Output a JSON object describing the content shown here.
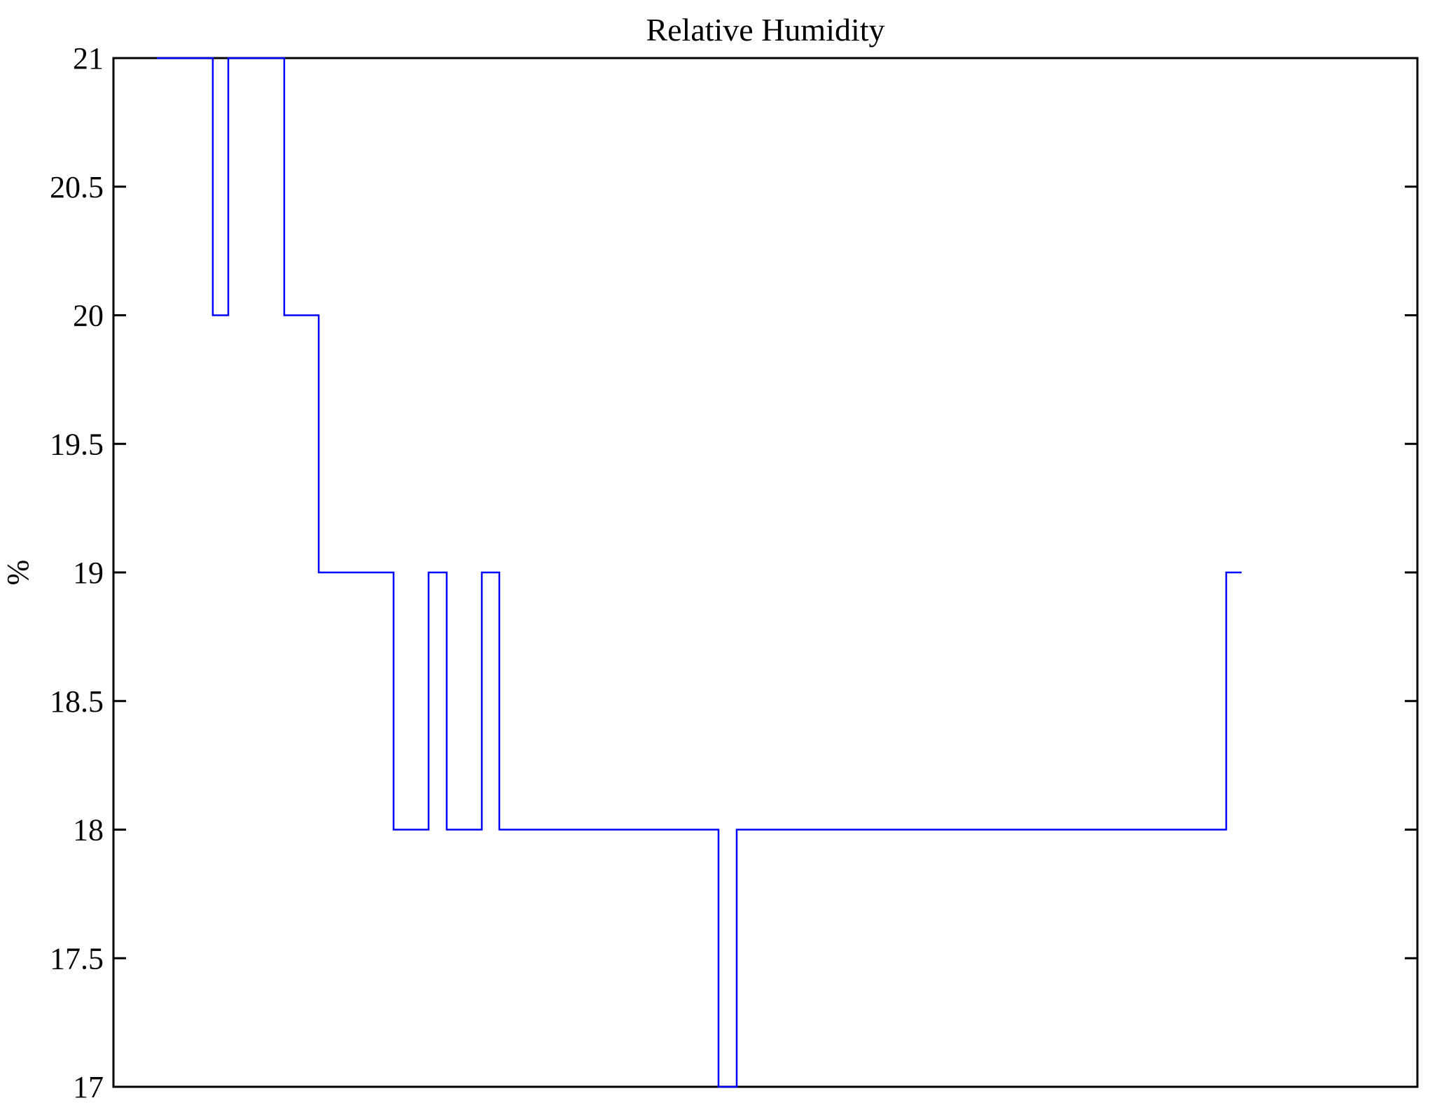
{
  "chart_data": {
    "type": "line",
    "subtype": "step",
    "title": "Relative Humidity",
    "xlabel": "",
    "ylabel": "%",
    "ylim": [
      17,
      21
    ],
    "yticks": [
      17,
      17.5,
      18,
      18.5,
      19,
      19.5,
      20,
      20.5,
      21
    ],
    "ytick_labels": [
      "17",
      "17.5",
      "18",
      "18.5",
      "19",
      "19.5",
      "20",
      "20.5",
      "21"
    ],
    "xlim_norm": [
      0,
      1
    ],
    "xticks": [],
    "xtick_labels": [],
    "grid": false,
    "legend": "none",
    "line_color": "#0000ff",
    "axis_color": "#000000",
    "background_color": "#ffffff",
    "steps": [
      {
        "x0": 0.0333,
        "x1": 0.0762,
        "y": 21
      },
      {
        "x0": 0.0762,
        "x1": 0.0881,
        "y": 20
      },
      {
        "x0": 0.0881,
        "x1": 0.131,
        "y": 21
      },
      {
        "x0": 0.131,
        "x1": 0.1574,
        "y": 20
      },
      {
        "x0": 0.1574,
        "x1": 0.2148,
        "y": 19
      },
      {
        "x0": 0.2148,
        "x1": 0.2417,
        "y": 18
      },
      {
        "x0": 0.2417,
        "x1": 0.2556,
        "y": 19
      },
      {
        "x0": 0.2556,
        "x1": 0.2825,
        "y": 18
      },
      {
        "x0": 0.2825,
        "x1": 0.2959,
        "y": 19
      },
      {
        "x0": 0.2959,
        "x1": 0.464,
        "y": 18
      },
      {
        "x0": 0.464,
        "x1": 0.478,
        "y": 17
      },
      {
        "x0": 0.478,
        "x1": 0.8534,
        "y": 18
      },
      {
        "x0": 0.8534,
        "x1": 0.8652,
        "y": 19
      }
    ]
  }
}
